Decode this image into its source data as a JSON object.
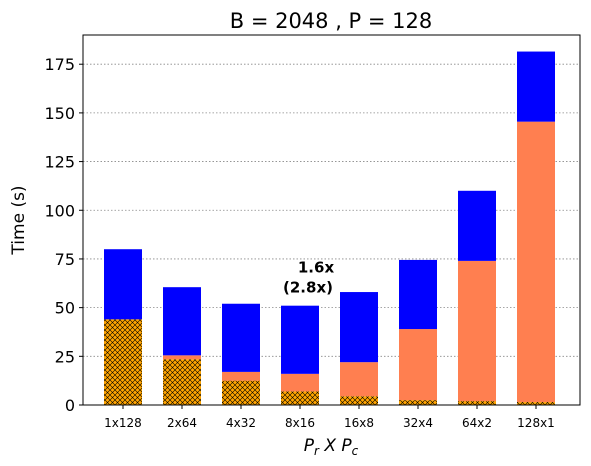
{
  "chart_data": {
    "type": "bar",
    "title": "B = 2048 ,  P = 128",
    "ylabel": "Time (s)",
    "xlabel": {
      "base1": "P",
      "sub1": "r",
      "mid": " X ",
      "base2": "P",
      "sub2": "c"
    },
    "categories": [
      "1x128",
      "2x64",
      "4x32",
      "8x16",
      "16x8",
      "32x4",
      "64x2",
      "128x1"
    ],
    "ylim": [
      0,
      190
    ],
    "yticks": [
      0,
      25,
      50,
      75,
      100,
      125,
      150,
      175
    ],
    "grid": "horizontal-dotted",
    "stacked": true,
    "series": [
      {
        "color": "#ffa500",
        "hatch": "crosshatch",
        "values": [
          44,
          23.5,
          12.5,
          7,
          4.5,
          2.5,
          2,
          1.5
        ]
      },
      {
        "color": "#ff7f50",
        "values": [
          0,
          2,
          4.5,
          9,
          17.5,
          36.5,
          72,
          144
        ]
      },
      {
        "color": "#0000ff",
        "values": [
          36,
          35,
          35,
          35,
          36,
          35.5,
          36,
          36
        ]
      }
    ],
    "annotation": {
      "lines": [
        "1.6x",
        "(2.8x)"
      ],
      "category": "8x16",
      "y": 68
    }
  }
}
